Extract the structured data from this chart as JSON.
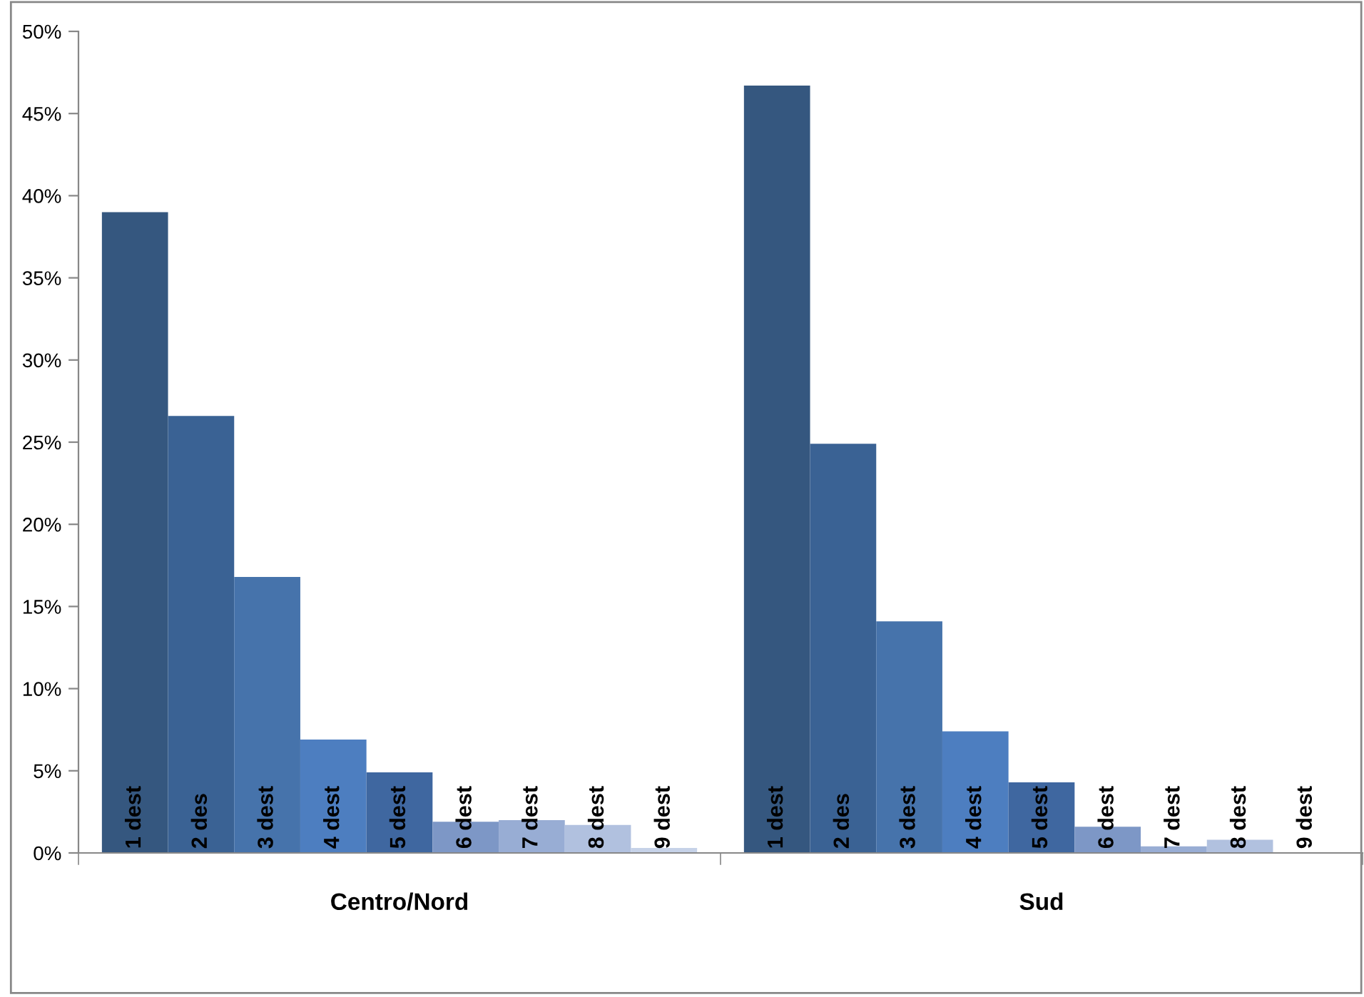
{
  "chart_data": {
    "type": "bar",
    "categories": [
      "Centro/Nord",
      "Sud"
    ],
    "series": [
      {
        "name": "1 dest",
        "color": "#35577f",
        "values": [
          39.0,
          46.7
        ]
      },
      {
        "name": "2 des",
        "color": "#3a6294",
        "values": [
          26.6,
          24.9
        ]
      },
      {
        "name": "3 dest",
        "color": "#4673ab",
        "values": [
          16.8,
          14.1
        ]
      },
      {
        "name": "4 dest",
        "color": "#4d7ec0",
        "values": [
          6.9,
          7.4
        ]
      },
      {
        "name": "5 dest",
        "color": "#3f67a0",
        "values": [
          4.9,
          4.3
        ]
      },
      {
        "name": "6 dest",
        "color": "#7d97c6",
        "values": [
          1.9,
          1.6
        ]
      },
      {
        "name": "7 dest",
        "color": "#98add4",
        "values": [
          2.0,
          0.4
        ]
      },
      {
        "name": "8 dest",
        "color": "#b1c1df",
        "values": [
          1.7,
          0.8
        ]
      },
      {
        "name": "9 dest",
        "color": "#c6d2e8",
        "values": [
          0.3,
          0
        ]
      }
    ],
    "ylim": [
      0,
      50
    ],
    "yticks": [
      {
        "value": 0,
        "label": "0%"
      },
      {
        "value": 5,
        "label": "5%"
      },
      {
        "value": 10,
        "label": "10%"
      },
      {
        "value": 15,
        "label": "15%"
      },
      {
        "value": 20,
        "label": "20%"
      },
      {
        "value": 25,
        "label": "25%"
      },
      {
        "value": 30,
        "label": "30%"
      },
      {
        "value": 35,
        "label": "35%"
      },
      {
        "value": 40,
        "label": "40%"
      },
      {
        "value": 45,
        "label": "45%"
      },
      {
        "value": 50,
        "label": "50%"
      }
    ],
    "grid": false,
    "legend": false
  }
}
